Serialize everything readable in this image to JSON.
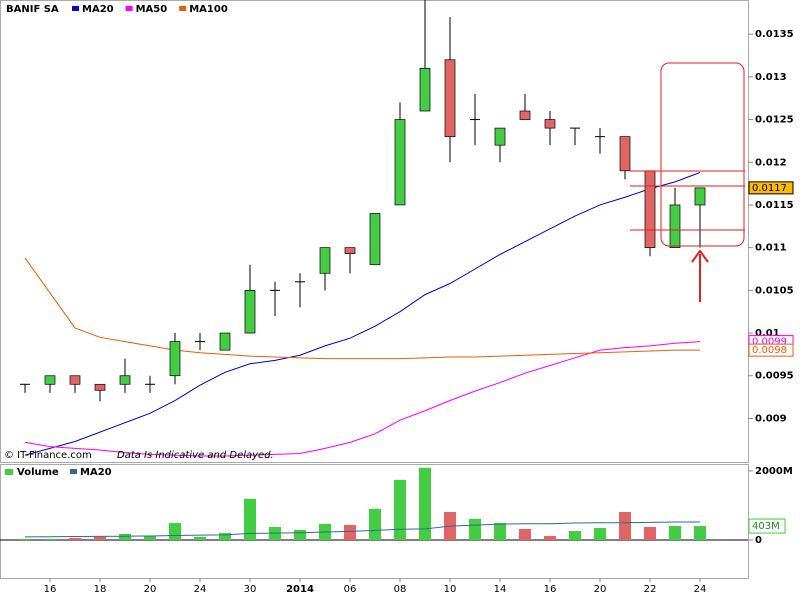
{
  "chart_data": [
    {
      "type": "candlestick",
      "title": "BANIF SA",
      "categories": [
        null,
        "16",
        null,
        "18",
        null,
        "20",
        null,
        "24",
        null,
        "30",
        null,
        "2014",
        null,
        "06",
        null,
        "08",
        null,
        "10",
        null,
        "14",
        null,
        "16",
        null,
        "20",
        null,
        "22",
        null,
        "24"
      ],
      "open": [
        0.0094,
        0.0094,
        0.0095,
        0.0094,
        0.0094,
        0.0094,
        0.0095,
        0.0099,
        0.0098,
        0.01,
        0.0105,
        0.0106,
        0.0107,
        0.011,
        0.0108,
        0.0115,
        0.0126,
        0.0132,
        0.0125,
        0.0122,
        0.0126,
        0.0125,
        0.0124,
        0.0123,
        0.0123,
        0.0119,
        0.011,
        0.0115
      ],
      "high": [
        0.0094,
        0.0095,
        0.0095,
        0.0094,
        0.0097,
        0.0095,
        0.01,
        0.01,
        0.01,
        0.0108,
        0.0106,
        0.0107,
        0.011,
        0.011,
        0.0114,
        0.0127,
        0.0139,
        0.0137,
        0.0128,
        0.0124,
        0.0128,
        0.0126,
        0.0124,
        0.0124,
        0.0123,
        0.0119,
        0.0117,
        0.0117
      ],
      "low": [
        0.0093,
        0.0093,
        0.0093,
        0.0092,
        0.0093,
        0.0093,
        0.0094,
        0.0098,
        0.0098,
        0.01,
        0.0102,
        0.0103,
        0.0105,
        0.0107,
        0.0108,
        0.0115,
        0.0126,
        0.012,
        0.0122,
        0.012,
        0.0125,
        0.0122,
        0.0122,
        0.0121,
        0.0118,
        0.0109,
        0.011,
        0.011
      ],
      "close": [
        0.0094,
        0.0095,
        0.0094,
        0.00933,
        0.0095,
        0.0094,
        0.0099,
        0.0099,
        0.01,
        0.0105,
        0.0105,
        0.0106,
        0.011,
        0.01093,
        0.0114,
        0.0125,
        0.0131,
        0.0123,
        0.0125,
        0.0124,
        0.0125,
        0.0124,
        0.0124,
        0.0123,
        0.0119,
        0.011,
        0.0115,
        0.0117
      ],
      "up_color": "#44cc44",
      "down_color": "#e06666",
      "close_tag_color": "#ffbb00",
      "series": [
        {
          "name": "MA20",
          "color": "#0000cc",
          "values": [
            0.00857,
            0.00865,
            0.00873,
            0.00884,
            0.00895,
            0.00906,
            0.00921,
            0.00939,
            0.00954,
            0.00964,
            0.00968,
            0.00974,
            0.00985,
            0.00994,
            0.01008,
            0.01025,
            0.01045,
            0.01058,
            0.01075,
            0.01092,
            0.01107,
            0.01122,
            0.01137,
            0.0115,
            0.01159,
            0.01169,
            0.01177,
            0.01188
          ]
        },
        {
          "name": "MA50",
          "color": "#ff00ff",
          "values": [
            0.00872,
            0.00867,
            0.00865,
            0.00863,
            0.0086,
            0.00858,
            0.00857,
            0.00856,
            0.00856,
            0.00857,
            0.00858,
            0.00859,
            0.00865,
            0.00872,
            0.00882,
            0.00898,
            0.00909,
            0.00921,
            0.00932,
            0.00942,
            0.00953,
            0.00962,
            0.00971,
            0.0098,
            0.00983,
            0.00985,
            0.00988,
            0.0099
          ]
        },
        {
          "name": "MA100",
          "color": "#e06010",
          "values": [
            0.01088,
            0.01047,
            0.01006,
            0.00995,
            0.0099,
            0.00985,
            0.0098,
            0.00977,
            0.00975,
            0.00973,
            0.00972,
            0.00971,
            0.0097,
            0.0097,
            0.0097,
            0.0097,
            0.00971,
            0.00972,
            0.00972,
            0.00973,
            0.00974,
            0.00975,
            0.00976,
            0.00977,
            0.00978,
            0.00979,
            0.0098,
            0.0098
          ]
        }
      ],
      "ylim": [
        0.00849,
        0.0139
      ],
      "yticks": [
        0.009,
        0.0095,
        0.01,
        0.0105,
        0.011,
        0.0115,
        0.012,
        0.0125,
        0.013,
        0.0135
      ]
    },
    {
      "type": "bar",
      "title": "Volume",
      "values": [
        30,
        30,
        60,
        90,
        175,
        115,
        490,
        90,
        200,
        1190,
        375,
        290,
        465,
        435,
        900,
        1740,
        2090,
        810,
        610,
        490,
        320,
        115,
        260,
        350,
        810,
        375,
        405,
        403
      ],
      "value_labels": [
        null,
        null,
        null,
        null,
        null,
        null,
        null,
        null,
        null,
        null,
        null,
        null,
        null,
        null,
        null,
        null,
        null,
        null,
        null,
        null,
        null,
        null,
        null,
        null,
        null,
        null,
        null,
        "403M"
      ],
      "series": [
        {
          "name": "MA20",
          "color": "#336699",
          "values": [
            90,
            95,
            100,
            105,
            110,
            115,
            130,
            140,
            150,
            190,
            200,
            210,
            230,
            250,
            280,
            310,
            320,
            400,
            430,
            460,
            470,
            470,
            490,
            500,
            500,
            510,
            520,
            520
          ]
        }
      ],
      "ylim": [
        0,
        2140
      ],
      "yticks": [
        {
          "value": 2000,
          "label": "2000M"
        },
        0
      ]
    }
  ],
  "footer": {
    "source": "© IT-Finance.com",
    "disclaimer": "Data Is Indicative and Delayed."
  }
}
